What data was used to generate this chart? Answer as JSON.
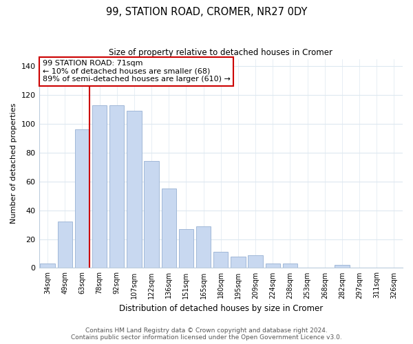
{
  "title": "99, STATION ROAD, CROMER, NR27 0DY",
  "subtitle": "Size of property relative to detached houses in Cromer",
  "xlabel": "Distribution of detached houses by size in Cromer",
  "ylabel": "Number of detached properties",
  "categories": [
    "34sqm",
    "49sqm",
    "63sqm",
    "78sqm",
    "92sqm",
    "107sqm",
    "122sqm",
    "136sqm",
    "151sqm",
    "165sqm",
    "180sqm",
    "195sqm",
    "209sqm",
    "224sqm",
    "238sqm",
    "253sqm",
    "268sqm",
    "282sqm",
    "297sqm",
    "311sqm",
    "326sqm"
  ],
  "values": [
    3,
    32,
    96,
    113,
    113,
    109,
    74,
    55,
    27,
    29,
    11,
    8,
    9,
    3,
    3,
    0,
    0,
    2,
    0,
    0,
    0
  ],
  "bar_color": "#c8d8f0",
  "bar_edge_color": "#a0b8d8",
  "reference_line_color": "#cc0000",
  "annotation_text": "99 STATION ROAD: 71sqm\n← 10% of detached houses are smaller (68)\n89% of semi-detached houses are larger (610) →",
  "annotation_box_color": "#ffffff",
  "annotation_box_edge_color": "#cc0000",
  "ylim": [
    0,
    145
  ],
  "yticks": [
    0,
    20,
    40,
    60,
    80,
    100,
    120,
    140
  ],
  "footer_line1": "Contains HM Land Registry data © Crown copyright and database right 2024.",
  "footer_line2": "Contains public sector information licensed under the Open Government Licence v3.0.",
  "background_color": "#ffffff",
  "grid_color": "#dde8f0"
}
